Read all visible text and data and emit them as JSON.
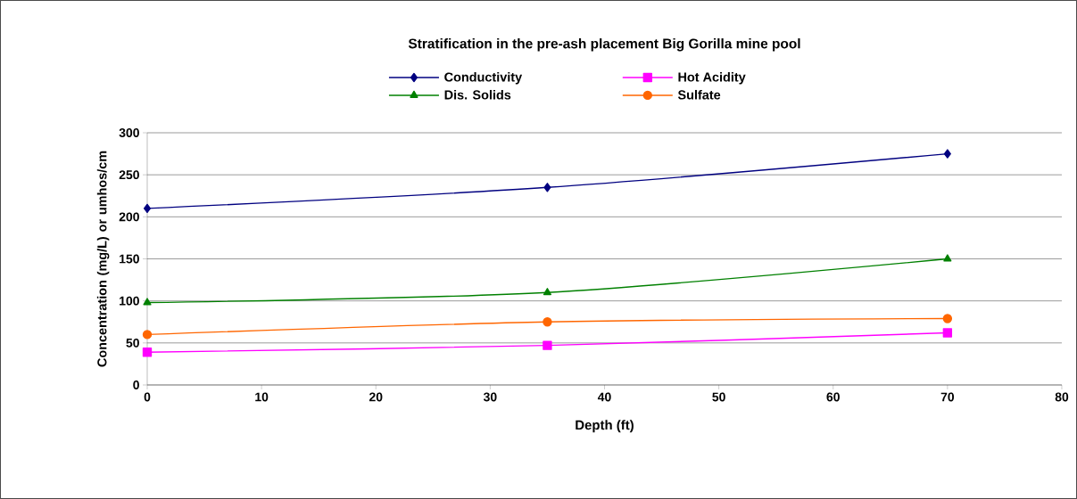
{
  "chart_data": {
    "type": "line",
    "title": "Stratification in the pre-ash placement Big Gorilla mine pool",
    "xlabel": "Depth (ft)",
    "ylabel": "Concentration (mg/L) or umhos/cm",
    "x": [
      0,
      35,
      70
    ],
    "series": [
      {
        "name": "Conductivity",
        "color": "#000080",
        "marker": "diamond",
        "values": [
          210,
          235,
          275
        ]
      },
      {
        "name": "Hot Acidity",
        "color": "#ff00ff",
        "marker": "square",
        "values": [
          39,
          47,
          62
        ]
      },
      {
        "name": "Dis. Solids",
        "color": "#008000",
        "marker": "triangle",
        "values": [
          98,
          110,
          150
        ]
      },
      {
        "name": "Sulfate",
        "color": "#ff6600",
        "marker": "circle",
        "values": [
          60,
          75,
          79
        ]
      }
    ],
    "xlim": [
      0,
      80
    ],
    "xticks": [
      0,
      10,
      20,
      30,
      40,
      50,
      60,
      70,
      80
    ],
    "ylim": [
      0,
      300
    ],
    "yticks": [
      0,
      50,
      100,
      150,
      200,
      250,
      300
    ],
    "grid": "y",
    "legend": "top",
    "line_style": "solid"
  }
}
